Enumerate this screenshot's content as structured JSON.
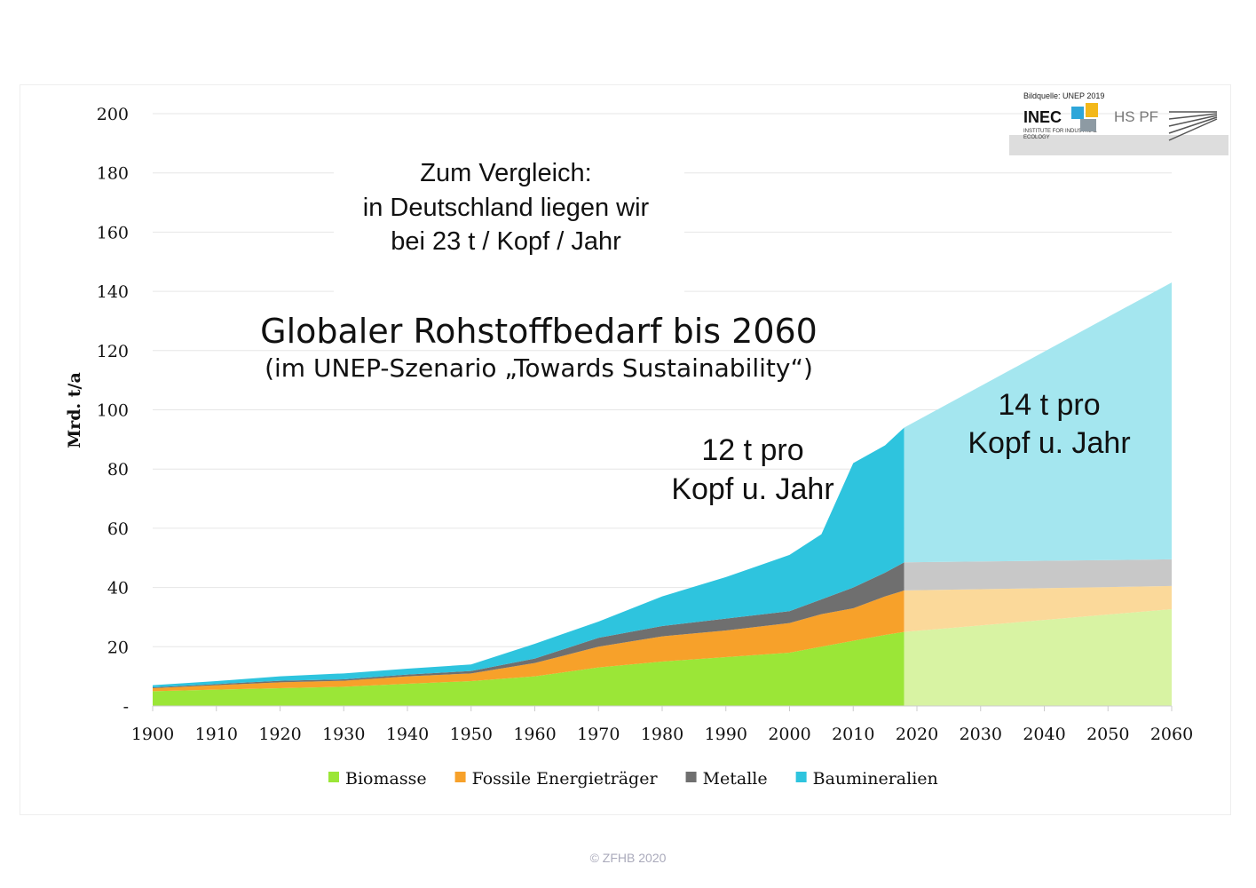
{
  "chart_data": {
    "type": "area",
    "stacked": true,
    "title": "Globaler Rohstoffbedarf bis 2060",
    "subtitle": "(im UNEP-Szenario „Towards Sustainability“)",
    "ylabel": "Mrd. t/a",
    "xlabel": "",
    "ylim": [
      0,
      200
    ],
    "xlim": [
      1900,
      2060
    ],
    "yticks": [
      "-",
      "20",
      "40",
      "60",
      "80",
      "100",
      "120",
      "140",
      "160",
      "180",
      "200"
    ],
    "xticks": [
      "1900",
      "1910",
      "1920",
      "1930",
      "1940",
      "1950",
      "1960",
      "1970",
      "1980",
      "1990",
      "2000",
      "2010",
      "2020",
      "2030",
      "2040",
      "2050",
      "2060"
    ],
    "grid": true,
    "legend_position": "bottom",
    "historical": {
      "x": [
        1900,
        1910,
        1920,
        1930,
        1940,
        1950,
        1960,
        1970,
        1980,
        1990,
        2000,
        2005,
        2010,
        2015,
        2018
      ],
      "series": [
        {
          "name": "Biomasse",
          "color": "#9be637",
          "values": [
            5,
            5.5,
            6,
            6.5,
            7.5,
            8.4,
            10,
            13,
            15,
            16.5,
            18,
            20,
            22,
            24,
            25
          ]
        },
        {
          "name": "Fossile Energieträger",
          "color": "#f7a12a",
          "values": [
            1,
            1.5,
            2,
            2,
            2.5,
            2.6,
            4.5,
            7,
            8.5,
            9,
            10,
            11,
            11,
            13,
            14
          ]
        },
        {
          "name": "Metalle",
          "color": "#6f6f6f",
          "values": [
            0.3,
            0.4,
            0.5,
            0.5,
            0.6,
            0.8,
            1.5,
            3,
            3.5,
            4,
            4,
            5,
            7,
            8,
            9.5
          ]
        },
        {
          "name": "Baumineralien",
          "color": "#2ec4de",
          "values": [
            0.7,
            1,
            1.5,
            2,
            2,
            2.2,
            5,
            5.5,
            10,
            14,
            19,
            22,
            42,
            43,
            45.5
          ]
        }
      ]
    },
    "projection": {
      "x": [
        2018,
        2060
      ],
      "colors": [
        "#d8f3a3",
        "#fbd99a",
        "#c8c8c8",
        "#a4e6ef"
      ],
      "series_values": [
        [
          25,
          32.7
        ],
        [
          14,
          7.8
        ],
        [
          9.5,
          9
        ],
        [
          45.5,
          93.5
        ]
      ]
    },
    "annotations": {
      "compare": [
        "Zum Vergleich:",
        "in Deutschland liegen wir",
        "bei 23 t / Kopf / Jahr"
      ],
      "hist_per_capita": [
        "12 t pro",
        "Kopf u. Jahr"
      ],
      "proj_per_capita": [
        "14 t pro",
        "Kopf u. Jahr"
      ]
    }
  },
  "logo": {
    "source": "Bildquelle: UNEP 2019",
    "inec": "INEC",
    "institute": "INSTITUTE FOR INDUSTRIAL ECOLOGY",
    "hspf": "HS PF"
  },
  "footer": {
    "copyright": "© ZFHB 2020"
  }
}
